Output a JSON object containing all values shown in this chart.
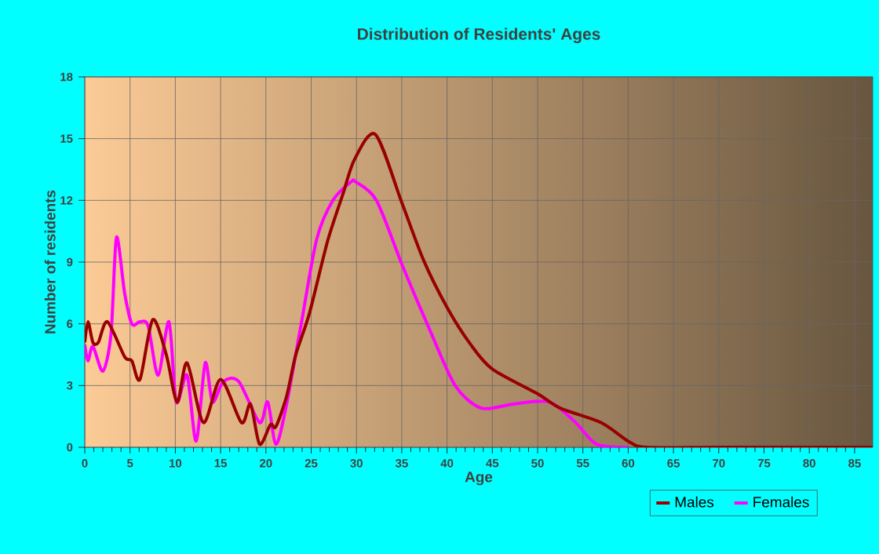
{
  "chart_data": {
    "type": "line",
    "title": "Distribution of Residents' Ages",
    "xlabel": "Age",
    "ylabel": "Number of residents",
    "xlim": [
      0,
      87
    ],
    "xticks": [
      0,
      5,
      10,
      15,
      20,
      25,
      30,
      35,
      40,
      45,
      50,
      55,
      60,
      65,
      70,
      75,
      80,
      85
    ],
    "ylim": [
      0,
      18
    ],
    "yticks": [
      0,
      3,
      6,
      9,
      12,
      15,
      18
    ],
    "grid": true,
    "legend": "bottom right",
    "marker": "none",
    "line_style": "solid",
    "series": [
      {
        "name": "Males",
        "color": "#990000",
        "x": [
          0,
          0.35,
          0.9,
          1.5,
          2.5,
          4.4,
          5.2,
          6.1,
          7.5,
          9.0,
          10.2,
          11.3,
          13.1,
          15,
          17.3,
          18.3,
          19.3,
          20.5,
          21.1,
          22.3,
          23.3,
          24.8,
          26.8,
          28.5,
          29.8,
          32.1,
          35,
          37.4,
          40,
          42.6,
          45,
          50,
          52.5,
          57,
          60,
          62,
          70,
          80,
          87
        ],
        "values": [
          5.1,
          6.1,
          5.1,
          5.1,
          6.1,
          4.4,
          4.2,
          3.3,
          6.2,
          4.5,
          2.2,
          4.1,
          1.2,
          3.3,
          1.2,
          2.1,
          0.15,
          1.1,
          1.0,
          2.5,
          4.5,
          6.5,
          10.0,
          12.3,
          14.0,
          15.2,
          11.9,
          9.1,
          6.8,
          5.0,
          3.8,
          2.6,
          1.9,
          1.2,
          0.3,
          0,
          0,
          0,
          0
        ]
      },
      {
        "name": "Females",
        "color": "#ff00ff",
        "x": [
          0,
          0.35,
          0.9,
          2,
          2.9,
          3.5,
          4.4,
          5.2,
          6.1,
          7,
          8.1,
          9.3,
          10.1,
          11.3,
          12.3,
          13.3,
          14.1,
          15.3,
          17,
          19.3,
          20.2,
          21.1,
          22.2,
          23.9,
          25.6,
          27.4,
          29.4,
          29.9,
          32.2,
          35.1,
          38,
          40.9,
          43.8,
          47.3,
          51.3,
          54.2,
          56.5,
          60
        ],
        "values": [
          5.0,
          4.2,
          4.9,
          3.7,
          5.5,
          10.2,
          7.5,
          6.0,
          6.1,
          5.9,
          3.5,
          6.1,
          2.2,
          3.5,
          0.3,
          4.1,
          2.2,
          3.2,
          3.2,
          1.2,
          2.2,
          0.15,
          1.9,
          6.0,
          10.1,
          12.0,
          12.9,
          12.9,
          12.0,
          8.8,
          5.8,
          3.0,
          1.9,
          2.1,
          2.2,
          1.2,
          0.15,
          0
        ]
      }
    ]
  }
}
